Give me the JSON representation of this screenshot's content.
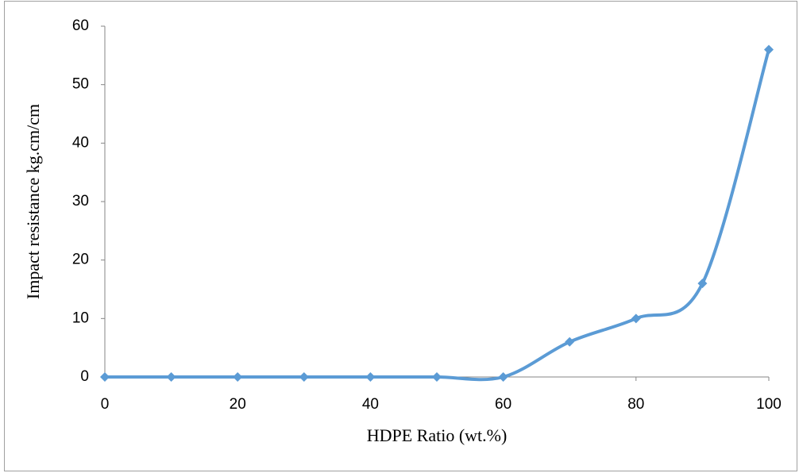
{
  "chart_data": {
    "type": "line",
    "x_label": "HDPE Ratio (wt.%)",
    "y_label": "Impact resistance kg.cm/cm",
    "x": [
      0,
      10,
      20,
      30,
      40,
      50,
      60,
      70,
      80,
      90,
      100
    ],
    "values": [
      0,
      0,
      0,
      0,
      0,
      0,
      0,
      6,
      10,
      16,
      56
    ],
    "color": "#5b9bd5",
    "smooth": true,
    "marker": "diamond",
    "xlim": [
      0,
      100
    ],
    "xticks": [
      0,
      20,
      40,
      60,
      80,
      100
    ],
    "ylim": [
      0,
      60
    ],
    "yticks": [
      0,
      10,
      20,
      30,
      40,
      50,
      60
    ],
    "grid": false
  }
}
